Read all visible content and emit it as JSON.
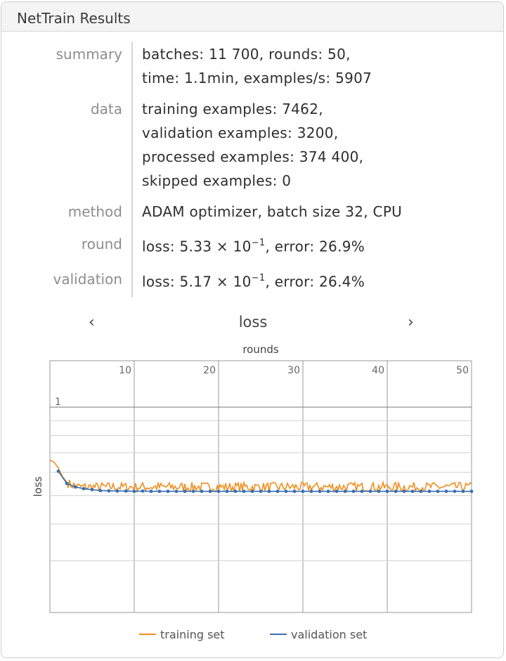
{
  "window": {
    "title": "NetTrain Results"
  },
  "summary_rows": [
    {
      "key": "summary",
      "lines": [
        "batches: 11 700, rounds: 50,",
        "time: 1.1min, examples/s: 5907"
      ]
    },
    {
      "key": "data",
      "lines": [
        "training examples: 7462,",
        "validation examples: 3200,",
        "processed examples: 374 400,",
        "skipped examples: 0"
      ]
    },
    {
      "key": "method",
      "lines": [
        "ADAM optimizer, batch size 32, CPU"
      ]
    },
    {
      "key": "round",
      "loss_prefix": "loss: 5.33 × 10",
      "exponent": "−1",
      "suffix": ", error: 26.9%"
    },
    {
      "key": "validation",
      "loss_prefix": "loss: 5.17 × 10",
      "exponent": "−1",
      "suffix": ", error: 26.4%"
    }
  ],
  "selector": {
    "label": "loss",
    "prev_icon": "chevron-left-icon",
    "next_icon": "chevron-right-icon"
  },
  "chart_data": {
    "type": "line",
    "title": "",
    "xlabel": "rounds",
    "ylabel": "loss",
    "xlim": [
      0,
      50
    ],
    "x_ticks": [
      "10",
      "20",
      "30",
      "40",
      "50"
    ],
    "y_tick_label": "1",
    "grid": true,
    "legend_position": "bottom",
    "series": [
      {
        "name": "training set",
        "color": "#f28e1e",
        "start_values": [
          0.66,
          0.65,
          0.62,
          0.58,
          0.555,
          0.545,
          0.54,
          0.535
        ],
        "steady_value": 0.535,
        "noise_amplitude": 0.02
      },
      {
        "name": "validation set",
        "color": "#3a6fb0",
        "values": [
          0.605,
          0.55,
          0.535,
          0.528,
          0.524,
          0.52,
          0.519,
          0.518,
          0.518,
          0.517,
          0.518,
          0.517,
          0.517,
          0.517,
          0.517,
          0.517,
          0.517,
          0.517,
          0.517,
          0.517,
          0.517,
          0.517,
          0.517,
          0.517,
          0.517,
          0.517,
          0.517,
          0.517,
          0.517,
          0.517,
          0.517,
          0.517,
          0.517,
          0.517,
          0.517,
          0.517,
          0.517,
          0.517,
          0.517,
          0.517,
          0.517,
          0.517,
          0.517,
          0.517,
          0.517,
          0.517,
          0.517,
          0.517,
          0.517,
          0.517
        ]
      }
    ]
  }
}
